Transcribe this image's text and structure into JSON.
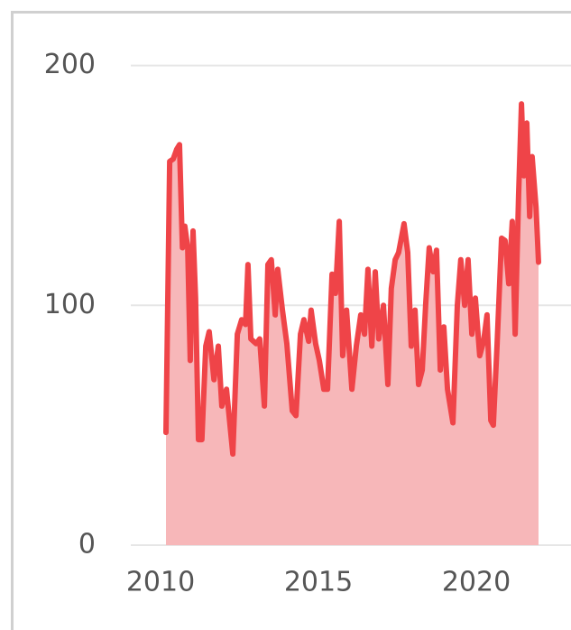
{
  "chart_data": {
    "type": "area",
    "x": [
      2010.17,
      2010.29,
      2010.4,
      2010.51,
      2010.6,
      2010.69,
      2010.77,
      2010.86,
      2010.94,
      2011.03,
      2011.11,
      2011.2,
      2011.31,
      2011.43,
      2011.54,
      2011.69,
      2011.83,
      2011.94,
      2012.09,
      2012.29,
      2012.43,
      2012.57,
      2012.69,
      2012.77,
      2012.86,
      2013.03,
      2013.14,
      2013.29,
      2013.4,
      2013.51,
      2013.63,
      2013.71,
      2013.86,
      2014,
      2014.17,
      2014.29,
      2014.43,
      2014.54,
      2014.69,
      2014.77,
      2014.91,
      2015.03,
      2015.17,
      2015.29,
      2015.43,
      2015.54,
      2015.66,
      2015.77,
      2015.89,
      2016.06,
      2016.2,
      2016.34,
      2016.46,
      2016.57,
      2016.69,
      2016.8,
      2016.91,
      2017.06,
      2017.2,
      2017.31,
      2017.43,
      2017.54,
      2017.71,
      2017.83,
      2017.94,
      2018.06,
      2018.17,
      2018.29,
      2018.4,
      2018.51,
      2018.63,
      2018.74,
      2018.86,
      2018.97,
      2019.09,
      2019.26,
      2019.4,
      2019.51,
      2019.63,
      2019.74,
      2019.86,
      2019.97,
      2020.11,
      2020.23,
      2020.34,
      2020.46,
      2020.54,
      2020.66,
      2020.8,
      2020.91,
      2021.03,
      2021.14,
      2021.23,
      2021.34,
      2021.43,
      2021.51,
      2021.6,
      2021.69,
      2021.77,
      2021.89,
      2021.97
    ],
    "values": [
      47,
      160,
      161,
      165,
      167,
      124,
      133,
      124,
      77,
      131,
      103,
      44,
      44,
      83,
      89,
      69,
      83,
      58,
      65,
      38,
      88,
      94,
      92,
      117,
      86,
      84,
      86,
      58,
      117,
      119,
      96,
      115,
      98,
      84,
      56,
      54,
      88,
      94,
      85,
      98,
      84,
      77,
      65,
      65,
      113,
      105,
      135,
      79,
      98,
      65,
      83,
      96,
      88,
      115,
      83,
      114,
      86,
      100,
      67,
      107,
      119,
      122,
      134,
      122,
      83,
      98,
      67,
      73,
      101,
      124,
      114,
      123,
      73,
      91,
      65,
      51,
      100,
      119,
      100,
      119,
      88,
      103,
      79,
      85,
      96,
      52,
      50,
      84,
      128,
      127,
      109,
      135,
      88,
      146,
      184,
      154,
      176,
      137,
      162,
      141,
      118
    ],
    "color": "#ef4448",
    "fill": "#f7b7b9",
    "xlim": [
      2009,
      2023
    ],
    "xticks": [
      2010,
      2015,
      2020
    ],
    "ylim": [
      0,
      210
    ],
    "yticks": [
      0,
      100,
      200
    ],
    "grid": true
  }
}
